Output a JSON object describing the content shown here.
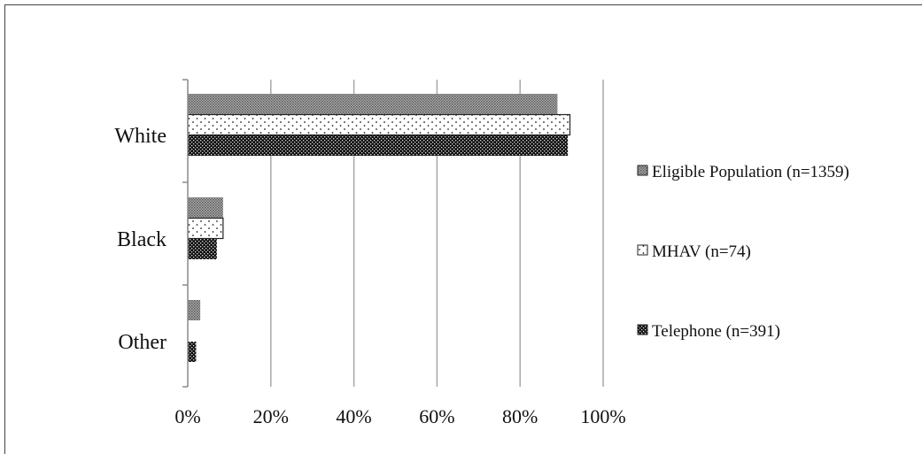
{
  "chart_data": {
    "type": "bar",
    "orientation": "horizontal",
    "categories": [
      "White",
      "Black",
      "Other"
    ],
    "series": [
      {
        "name": "Eligible Population (n=1359)",
        "values": [
          89,
          8.5,
          3
        ],
        "pattern": "dense-gray",
        "color": "#8a8a8a"
      },
      {
        "name": "MHAV (n=74)",
        "values": [
          92,
          8.5,
          0
        ],
        "pattern": "sparse-dots",
        "color": "#ffffff"
      },
      {
        "name": "Telephone (n=391)",
        "values": [
          91.5,
          7,
          2
        ],
        "pattern": "checker-dark",
        "color": "#111111"
      }
    ],
    "xticks": [
      "0%",
      "20%",
      "40%",
      "60%",
      "80%",
      "100%"
    ],
    "xlim": [
      0,
      100
    ],
    "grid": "vertical",
    "legend_position": "right"
  }
}
